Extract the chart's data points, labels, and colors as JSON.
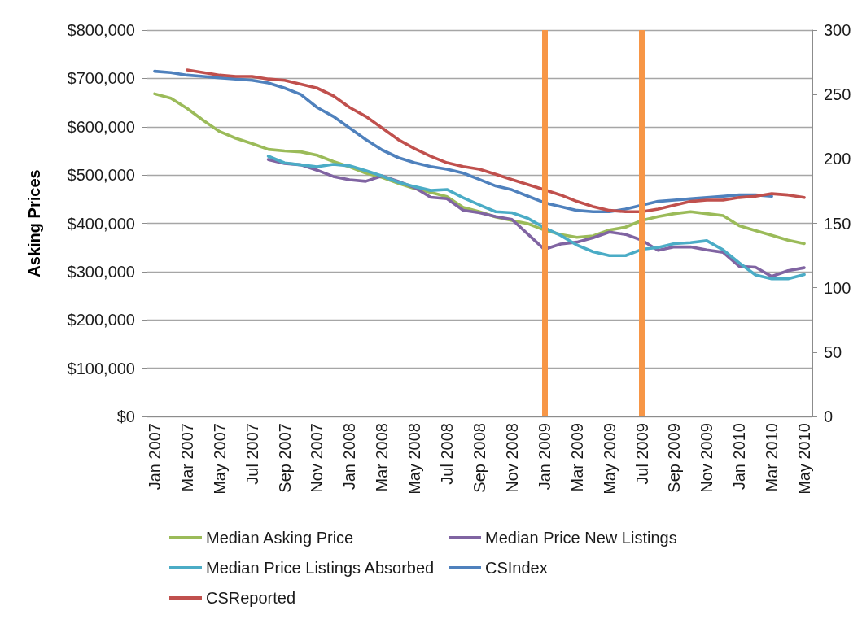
{
  "chart_data": {
    "type": "line",
    "categories": [
      "Jan 2007",
      null,
      "Mar 2007",
      null,
      "May 2007",
      null,
      "Jul 2007",
      null,
      "Sep 2007",
      null,
      "Nov 2007",
      null,
      "Jan 2008",
      null,
      "Mar 2008",
      null,
      "May 2008",
      null,
      "Jul 2008",
      null,
      "Sep 2008",
      null,
      "Nov 2008",
      null,
      "Jan 2009",
      null,
      "Mar 2009",
      null,
      "May 2009",
      null,
      "Jul 2009",
      null,
      "Sep 2009",
      null,
      "Nov 2009",
      null,
      "Jan 2010",
      null,
      "Mar 2010",
      null,
      "May 2010"
    ],
    "series": [
      {
        "name": "Median Asking Price",
        "color": "#9bbb59",
        "values": [
          668000,
          659000,
          638000,
          613000,
          590000,
          576000,
          565000,
          553000,
          550000,
          548000,
          541000,
          528000,
          517000,
          504000,
          495000,
          483000,
          472000,
          464000,
          455000,
          433000,
          424000,
          413000,
          406000,
          399000,
          386000,
          377000,
          371000,
          374000,
          386000,
          392000,
          406000,
          414000,
          420000,
          424000,
          420000,
          416000,
          395000,
          385000,
          375000,
          365000,
          358000
        ]
      },
      {
        "name": "Median Price New Listings",
        "color": "#8064a2",
        "values": [
          null,
          null,
          null,
          null,
          null,
          null,
          null,
          532000,
          524000,
          521000,
          510000,
          497000,
          490000,
          487000,
          498000,
          487000,
          474000,
          454000,
          451000,
          427000,
          422000,
          414000,
          408000,
          377000,
          346000,
          357000,
          361000,
          370000,
          382000,
          377000,
          365000,
          344000,
          351000,
          351000,
          345000,
          340000,
          311000,
          309000,
          290000,
          302000,
          308000
        ]
      },
      {
        "name": "Median Price Listings Absorbed",
        "color": "#4bacc6",
        "values": [
          null,
          null,
          null,
          null,
          null,
          null,
          null,
          539000,
          525000,
          521000,
          517000,
          522000,
          519000,
          509000,
          498000,
          485000,
          476000,
          468000,
          470000,
          453000,
          438000,
          424000,
          422000,
          410000,
          391000,
          375000,
          355000,
          341000,
          333000,
          333000,
          346000,
          350000,
          358000,
          360000,
          364000,
          345000,
          318000,
          293000,
          285000,
          285000,
          294000
        ]
      },
      {
        "name": "CSIndex",
        "color": "#4f81bd",
        "axis": "y2",
        "values": [
          268,
          267,
          265,
          264,
          263,
          262,
          261,
          259,
          255,
          250,
          240,
          233,
          224,
          215,
          207,
          201,
          197,
          194,
          192,
          189,
          184,
          179,
          176,
          171,
          166,
          163,
          160,
          159,
          159,
          161,
          164,
          167,
          168,
          169,
          170,
          171,
          172,
          172,
          171,
          null,
          null
        ]
      },
      {
        "name": "CSReported",
        "color": "#c0504d",
        "axis": "y2",
        "values": [
          null,
          null,
          269,
          267,
          265,
          264,
          264,
          262,
          261,
          258,
          255,
          249,
          240,
          233,
          224,
          215,
          208,
          202,
          197,
          194,
          192,
          188,
          184,
          180,
          176,
          172,
          167,
          163,
          160,
          159,
          159,
          161,
          164,
          167,
          168,
          168,
          170,
          171,
          173,
          172,
          170
        ]
      }
    ],
    "ylabel": "Asking Prices",
    "ylim": [
      0,
      800000
    ],
    "yticks": [
      {
        "value": 0,
        "label": "$0"
      },
      {
        "value": 100000,
        "label": "$100,000"
      },
      {
        "value": 200000,
        "label": "$200,000"
      },
      {
        "value": 300000,
        "label": "$300,000"
      },
      {
        "value": 400000,
        "label": "$400,000"
      },
      {
        "value": 500000,
        "label": "$500,000"
      },
      {
        "value": 600000,
        "label": "$600,000"
      },
      {
        "value": 700000,
        "label": "$700,000"
      },
      {
        "value": 800000,
        "label": "$800,000"
      }
    ],
    "y2lim": [
      0,
      300
    ],
    "y2ticks": [
      0,
      50,
      100,
      150,
      200,
      250,
      300
    ],
    "ref_lines": [
      {
        "axis": "x",
        "value": "Jan 2009",
        "color": "#f79646"
      },
      {
        "axis": "x",
        "value": "Jul 2009",
        "color": "#f79646"
      }
    ],
    "grid": "y",
    "legend": "bottom",
    "marker": "none",
    "line_style": "solid"
  }
}
